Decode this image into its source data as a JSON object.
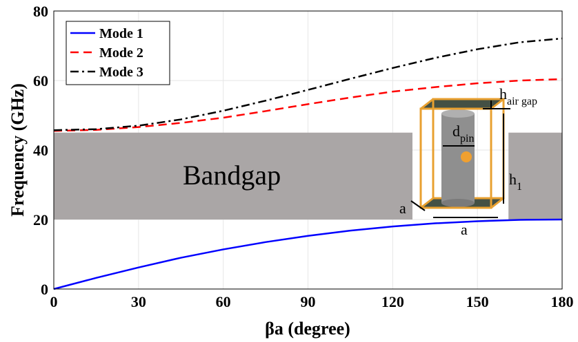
{
  "chart_data": {
    "type": "line",
    "xlabel": "βa (degree)",
    "ylabel": "Frequency (GHz)",
    "x": [
      0,
      15,
      30,
      45,
      60,
      75,
      90,
      105,
      120,
      135,
      150,
      165,
      180
    ],
    "series": [
      {
        "name": "Mode 1",
        "color": "#0000ff",
        "dash": "solid",
        "values": [
          0,
          3.2,
          6.2,
          9,
          11.4,
          13.5,
          15.3,
          16.8,
          18,
          18.9,
          19.5,
          19.9,
          20
        ]
      },
      {
        "name": "Mode 2",
        "color": "#ff0000",
        "dash": "dashed",
        "values": [
          45.5,
          45.8,
          46.6,
          47.8,
          49.3,
          51.2,
          53.2,
          55.1,
          56.8,
          58.1,
          59.2,
          60,
          60.4
        ]
      },
      {
        "name": "Mode 3",
        "color": "#000000",
        "dash": "dashdot",
        "values": [
          45.7,
          46,
          47,
          48.8,
          51.3,
          54.2,
          57.3,
          60.5,
          63.6,
          66.5,
          69,
          71,
          72.1
        ]
      }
    ],
    "bands": [
      {
        "x": [
          0,
          127
        ],
        "y": [
          20,
          45
        ]
      },
      {
        "x": [
          161,
          180
        ],
        "y": [
          20,
          45
        ]
      }
    ],
    "band_color": "#aaa6a6",
    "xlim": [
      0,
      180
    ],
    "xticks": [
      0,
      30,
      60,
      90,
      120,
      150,
      180
    ],
    "ylim": [
      0,
      80
    ],
    "yticks": [
      0,
      20,
      40,
      60,
      80
    ],
    "grid": true,
    "legend": "upper left",
    "annotations": [
      "Bandgap",
      "h",
      "air gap",
      "d",
      "pin",
      "h",
      "1",
      "a",
      "a"
    ]
  }
}
